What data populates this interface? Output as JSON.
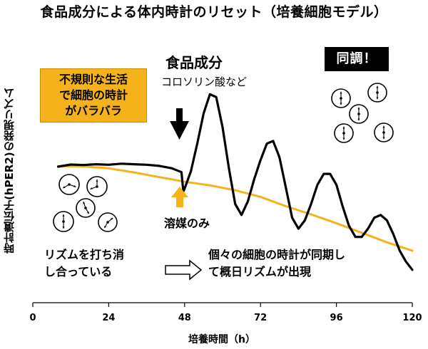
{
  "title": "食品成分による体内時計のリセット（培養細胞モデル）",
  "xlabel": "培養時間（h）",
  "ylabel": "時計遺伝子(hPER2)の発現リズム",
  "annotations": {
    "food_label": "食品成分",
    "food_sub": "コロソリン酸など",
    "solvent_label": "溶媒のみ",
    "sync_badge": "同調！",
    "orange_box": [
      "不規則な生活",
      "で細胞の時計",
      "がバラバラ"
    ],
    "cancel_text": [
      "リズムを打ち消",
      "し合っている"
    ],
    "sync_text": [
      "個々の細胞の時計が同期し",
      "て概日リズムが出現"
    ]
  },
  "colors": {
    "food": "#000000",
    "solvent": "#f5b21a",
    "arrow_up": "#f5b21a"
  },
  "chart_data": {
    "type": "line",
    "x_ticks": [
      0,
      24,
      48,
      72,
      96,
      120
    ],
    "xlim": [
      0,
      120
    ],
    "ylim": [
      0,
      1
    ],
    "series": [
      {
        "color": "#000000",
        "x": [
          8,
          12,
          16,
          20,
          24,
          28,
          32,
          36,
          40,
          44,
          47,
          47.6,
          48,
          50,
          52,
          54,
          56,
          58,
          60,
          62,
          64,
          66,
          68,
          70,
          72,
          74,
          76,
          78,
          80,
          82,
          84,
          86,
          88,
          90,
          92,
          94,
          96,
          98,
          100,
          102,
          104,
          106,
          108,
          110,
          112,
          114,
          116,
          118,
          120
        ],
        "y": [
          0.496,
          0.504,
          0.502,
          0.505,
          0.503,
          0.507,
          0.505,
          0.503,
          0.499,
          0.49,
          0.476,
          0.406,
          0.416,
          0.48,
          0.58,
          0.69,
          0.76,
          0.75,
          0.64,
          0.49,
          0.36,
          0.32,
          0.37,
          0.45,
          0.52,
          0.58,
          0.59,
          0.53,
          0.42,
          0.31,
          0.27,
          0.3,
          0.36,
          0.43,
          0.47,
          0.47,
          0.43,
          0.35,
          0.28,
          0.24,
          0.24,
          0.27,
          0.31,
          0.32,
          0.3,
          0.25,
          0.19,
          0.15,
          0.12
        ]
      },
      {
        "color": "#f5b21a",
        "x": [
          8,
          16,
          24,
          32,
          40,
          44,
          48,
          56,
          64,
          72,
          80,
          88,
          96,
          104,
          112,
          120
        ],
        "y": [
          0.498,
          0.497,
          0.49,
          0.475,
          0.458,
          0.45,
          0.441,
          0.428,
          0.41,
          0.386,
          0.352,
          0.322,
          0.29,
          0.255,
          0.22,
          0.19
        ]
      }
    ]
  }
}
